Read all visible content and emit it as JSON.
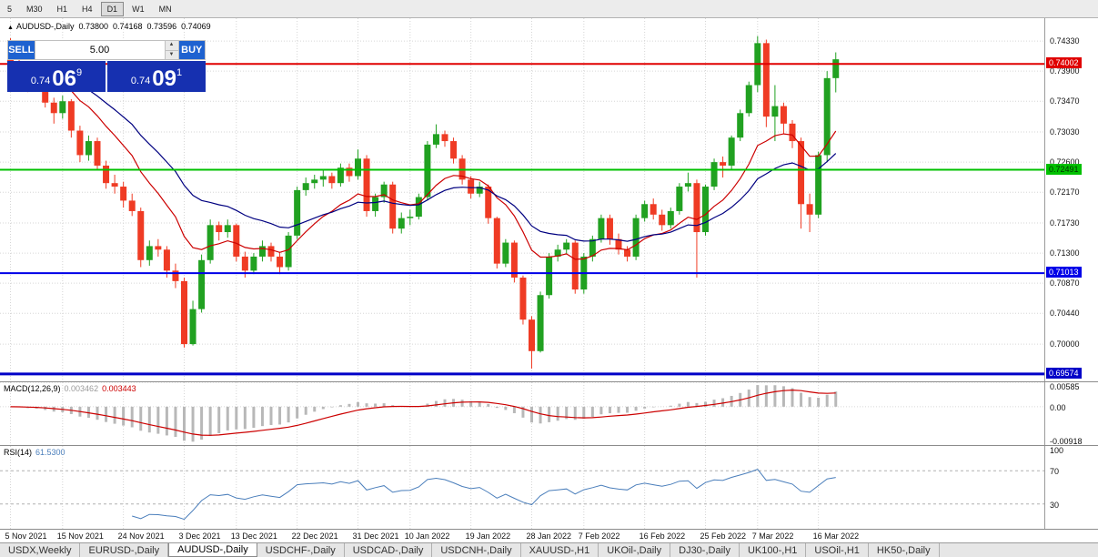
{
  "toolbar": {
    "timeframes": [
      {
        "label": "5",
        "active": false
      },
      {
        "label": "M30",
        "active": false
      },
      {
        "label": "H1",
        "active": false
      },
      {
        "label": "H4",
        "active": false
      },
      {
        "label": "D1",
        "active": true
      },
      {
        "label": "W1",
        "active": false
      },
      {
        "label": "MN",
        "active": false
      }
    ]
  },
  "chart": {
    "symbol": "AUDUSD-,Daily",
    "open": "0.73800",
    "high": "0.74168",
    "low": "0.73596",
    "close": "0.74069"
  },
  "trade": {
    "sell_label": "SELL",
    "buy_label": "BUY",
    "volume": "5.00",
    "spin_up": "▲",
    "spin_down": "▼",
    "sell_price": {
      "prefix": "0.74",
      "big": "06",
      "sup": "9"
    },
    "buy_price": {
      "prefix": "0.74",
      "big": "09",
      "sup": "1"
    }
  },
  "tabs": [
    {
      "label": "USDX,Weekly",
      "active": false
    },
    {
      "label": "EURUSD-,Daily",
      "active": false
    },
    {
      "label": "AUDUSD-,Daily",
      "active": true
    },
    {
      "label": "USDCHF-,Daily",
      "active": false
    },
    {
      "label": "USDCAD-,Daily",
      "active": false
    },
    {
      "label": "USDCNH-,Daily",
      "active": false
    },
    {
      "label": "XAUUSD-,H1",
      "active": false
    },
    {
      "label": "UKOil-,Daily",
      "active": false
    },
    {
      "label": "DJ30-,Daily",
      "active": false
    },
    {
      "label": "UK100-,H1",
      "active": false
    },
    {
      "label": "USOil-,H1",
      "active": false
    },
    {
      "label": "HK50-,Daily",
      "active": false
    }
  ],
  "chart_data": {
    "type": "candlestick",
    "title": "AUDUSD- Daily",
    "colors": {
      "up": "#21a121",
      "down": "#ef3b24"
    },
    "main": {
      "ylim": [
        0.69468,
        0.74656
      ],
      "y_ticks": [
        "0.74330",
        "0.73900",
        "0.73470",
        "0.73030",
        "0.72600",
        "0.72170",
        "0.71730",
        "0.71300",
        "0.70870",
        "0.70440",
        "0.70000"
      ]
    },
    "hlines": [
      {
        "price": 0.74002,
        "label": "0.74002",
        "color": "#e00000",
        "text": "#ffffff",
        "width": 2
      },
      {
        "price": 0.72491,
        "label": "0.72491",
        "color": "#00c000",
        "text": "#003300",
        "width": 2
      },
      {
        "price": 0.71013,
        "label": "0.71013",
        "color": "#0000e8",
        "text": "#ffffff",
        "width": 2
      },
      {
        "price": 0.69574,
        "label": "0.69574",
        "color": "#0000c8",
        "text": "#ffffff",
        "width": 3
      }
    ],
    "moving_averages": [
      {
        "period": 12,
        "method": "ema",
        "color": "#cc0000"
      },
      {
        "period": 24,
        "method": "ema",
        "color": "#000080"
      }
    ],
    "macd": {
      "label": "MACD(12,26,9)",
      "value1": "0.003462",
      "value2": "0.003443",
      "fast": 12,
      "slow": 26,
      "signal": 9,
      "ylim": [
        -0.00918,
        0.00585
      ],
      "y_ticks": [
        "0.00585",
        "0.00",
        "-0.00918"
      ],
      "hist_color": "#b8b8b8",
      "signal_color": "#cc0000"
    },
    "rsi": {
      "label": "RSI(14)",
      "value": "61.5300",
      "period": 14,
      "levels": [
        70,
        30
      ],
      "y_ticks": [
        "100",
        "70",
        "30"
      ],
      "color": "#4a7ebb"
    },
    "x_labels": [
      {
        "label": "5 Nov 2021",
        "i": 0
      },
      {
        "label": "15 Nov 2021",
        "i": 6
      },
      {
        "label": "24 Nov 2021",
        "i": 13
      },
      {
        "label": "3 Dec 2021",
        "i": 20
      },
      {
        "label": "13 Dec 2021",
        "i": 26
      },
      {
        "label": "22 Dec 2021",
        "i": 33
      },
      {
        "label": "31 Dec 2021",
        "i": 40
      },
      {
        "label": "10 Jan 2022",
        "i": 46
      },
      {
        "label": "19 Jan 2022",
        "i": 53
      },
      {
        "label": "28 Jan 2022",
        "i": 60
      },
      {
        "label": "7 Feb 2022",
        "i": 66
      },
      {
        "label": "16 Feb 2022",
        "i": 73
      },
      {
        "label": "25 Feb 2022",
        "i": 80
      },
      {
        "label": "7 Mar 2022",
        "i": 86
      },
      {
        "label": "16 Mar 2022",
        "i": 93
      }
    ],
    "candles": [
      [
        0.743,
        0.7437,
        0.7395,
        0.7402
      ],
      [
        0.7402,
        0.7412,
        0.738,
        0.7388
      ],
      [
        0.7388,
        0.7395,
        0.736,
        0.737
      ],
      [
        0.737,
        0.7392,
        0.7365,
        0.738
      ],
      [
        0.738,
        0.7385,
        0.7338,
        0.7345
      ],
      [
        0.7345,
        0.7352,
        0.7315,
        0.733
      ],
      [
        0.733,
        0.7355,
        0.7322,
        0.7347
      ],
      [
        0.7347,
        0.735,
        0.7295,
        0.7305
      ],
      [
        0.7305,
        0.7312,
        0.726,
        0.727
      ],
      [
        0.727,
        0.7298,
        0.7262,
        0.729
      ],
      [
        0.729,
        0.7295,
        0.7248,
        0.7255
      ],
      [
        0.7255,
        0.7262,
        0.7222,
        0.723
      ],
      [
        0.723,
        0.7242,
        0.7215,
        0.7225
      ],
      [
        0.7225,
        0.7232,
        0.7195,
        0.7205
      ],
      [
        0.7205,
        0.7215,
        0.7183,
        0.719
      ],
      [
        0.719,
        0.7195,
        0.711,
        0.712
      ],
      [
        0.712,
        0.7148,
        0.7112,
        0.714
      ],
      [
        0.714,
        0.715,
        0.7125,
        0.7135
      ],
      [
        0.7135,
        0.714,
        0.7095,
        0.7105
      ],
      [
        0.7105,
        0.7115,
        0.708,
        0.709
      ],
      [
        0.709,
        0.7095,
        0.6995,
        0.7
      ],
      [
        0.7,
        0.7062,
        0.6998,
        0.705
      ],
      [
        0.705,
        0.7128,
        0.7045,
        0.712
      ],
      [
        0.712,
        0.7178,
        0.7115,
        0.717
      ],
      [
        0.717,
        0.7175,
        0.7148,
        0.716
      ],
      [
        0.716,
        0.7178,
        0.7152,
        0.717
      ],
      [
        0.717,
        0.7172,
        0.7118,
        0.7125
      ],
      [
        0.7125,
        0.7132,
        0.7095,
        0.7105
      ],
      [
        0.7105,
        0.713,
        0.71,
        0.7125
      ],
      [
        0.7125,
        0.7148,
        0.7118,
        0.714
      ],
      [
        0.714,
        0.7145,
        0.7118,
        0.7125
      ],
      [
        0.7125,
        0.7132,
        0.71,
        0.711
      ],
      [
        0.711,
        0.716,
        0.7105,
        0.7155
      ],
      [
        0.7155,
        0.7225,
        0.715,
        0.722
      ],
      [
        0.722,
        0.7238,
        0.7212,
        0.723
      ],
      [
        0.723,
        0.7242,
        0.7222,
        0.7235
      ],
      [
        0.7235,
        0.7248,
        0.7225,
        0.724
      ],
      [
        0.724,
        0.7245,
        0.7222,
        0.723
      ],
      [
        0.723,
        0.7258,
        0.7225,
        0.7252
      ],
      [
        0.7252,
        0.7258,
        0.7232,
        0.724
      ],
      [
        0.724,
        0.7278,
        0.7235,
        0.7265
      ],
      [
        0.7265,
        0.727,
        0.7182,
        0.719
      ],
      [
        0.719,
        0.7215,
        0.7182,
        0.721
      ],
      [
        0.721,
        0.7232,
        0.7202,
        0.7228
      ],
      [
        0.7228,
        0.7232,
        0.7158,
        0.7165
      ],
      [
        0.7165,
        0.7188,
        0.7158,
        0.718
      ],
      [
        0.718,
        0.7192,
        0.717,
        0.7182
      ],
      [
        0.7182,
        0.7215,
        0.7178,
        0.721
      ],
      [
        0.721,
        0.729,
        0.7205,
        0.7285
      ],
      [
        0.7285,
        0.7314,
        0.728,
        0.73
      ],
      [
        0.73,
        0.7305,
        0.7282,
        0.729
      ],
      [
        0.729,
        0.7295,
        0.7258,
        0.7265
      ],
      [
        0.7265,
        0.727,
        0.7228,
        0.7235
      ],
      [
        0.7235,
        0.724,
        0.7208,
        0.7215
      ],
      [
        0.7215,
        0.7232,
        0.721,
        0.7225
      ],
      [
        0.7225,
        0.7228,
        0.7172,
        0.718
      ],
      [
        0.718,
        0.7182,
        0.7108,
        0.7115
      ],
      [
        0.7115,
        0.715,
        0.711,
        0.7145
      ],
      [
        0.7145,
        0.7148,
        0.7088,
        0.7095
      ],
      [
        0.7095,
        0.7098,
        0.7028,
        0.7035
      ],
      [
        0.7035,
        0.704,
        0.6965,
        0.699
      ],
      [
        0.699,
        0.7075,
        0.6988,
        0.707
      ],
      [
        0.707,
        0.713,
        0.7065,
        0.7125
      ],
      [
        0.7125,
        0.7142,
        0.7118,
        0.7135
      ],
      [
        0.7135,
        0.715,
        0.7128,
        0.7145
      ],
      [
        0.7145,
        0.7148,
        0.7072,
        0.7078
      ],
      [
        0.7078,
        0.713,
        0.7072,
        0.7125
      ],
      [
        0.7125,
        0.7155,
        0.7118,
        0.715
      ],
      [
        0.715,
        0.7185,
        0.7145,
        0.718
      ],
      [
        0.718,
        0.7185,
        0.7142,
        0.715
      ],
      [
        0.715,
        0.7158,
        0.7128,
        0.7135
      ],
      [
        0.7135,
        0.714,
        0.7118,
        0.7125
      ],
      [
        0.7125,
        0.7185,
        0.712,
        0.718
      ],
      [
        0.718,
        0.7205,
        0.7175,
        0.72
      ],
      [
        0.72,
        0.7208,
        0.7178,
        0.7185
      ],
      [
        0.7185,
        0.7192,
        0.7162,
        0.717
      ],
      [
        0.717,
        0.7195,
        0.7165,
        0.719
      ],
      [
        0.719,
        0.723,
        0.7185,
        0.7225
      ],
      [
        0.7225,
        0.7245,
        0.7218,
        0.723
      ],
      [
        0.723,
        0.7235,
        0.7095,
        0.716
      ],
      [
        0.716,
        0.7228,
        0.7155,
        0.7225
      ],
      [
        0.7225,
        0.7265,
        0.722,
        0.726
      ],
      [
        0.726,
        0.7268,
        0.7238,
        0.7255
      ],
      [
        0.7255,
        0.7298,
        0.725,
        0.7295
      ],
      [
        0.7295,
        0.7335,
        0.729,
        0.733
      ],
      [
        0.733,
        0.7375,
        0.7325,
        0.737
      ],
      [
        0.737,
        0.744,
        0.736,
        0.743
      ],
      [
        0.743,
        0.7435,
        0.731,
        0.7325
      ],
      [
        0.7325,
        0.737,
        0.729,
        0.734
      ],
      [
        0.734,
        0.7345,
        0.73,
        0.7315
      ],
      [
        0.7315,
        0.732,
        0.728,
        0.729
      ],
      [
        0.729,
        0.7295,
        0.7165,
        0.72
      ],
      [
        0.72,
        0.7215,
        0.716,
        0.7185
      ],
      [
        0.7185,
        0.7275,
        0.718,
        0.727
      ],
      [
        0.727,
        0.739,
        0.726,
        0.738
      ],
      [
        0.738,
        0.74168,
        0.73596,
        0.74069
      ]
    ]
  }
}
